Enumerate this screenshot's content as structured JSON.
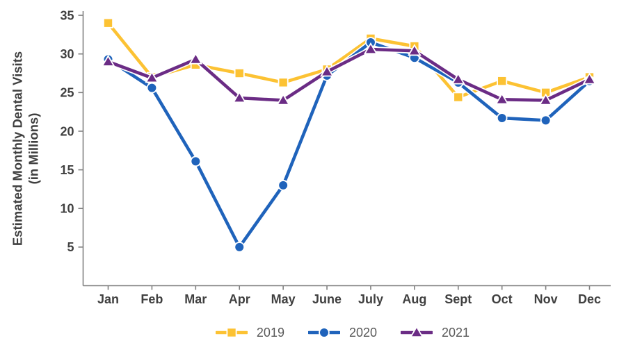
{
  "chart_data": {
    "type": "line",
    "title": "",
    "categories": [
      "Jan",
      "Feb",
      "Mar",
      "Apr",
      "May",
      "June",
      "July",
      "Aug",
      "Sept",
      "Oct",
      "Nov",
      "Dec"
    ],
    "series": [
      {
        "name": "2019",
        "marker": "square",
        "color": "#FCC233",
        "values": [
          34.0,
          27.0,
          28.6,
          27.5,
          26.3,
          28.0,
          32.0,
          31.0,
          24.4,
          26.5,
          25.0,
          27.0
        ]
      },
      {
        "name": "2020",
        "marker": "circle",
        "color": "#1F63BB",
        "values": [
          29.3,
          25.6,
          16.1,
          5.0,
          13.0,
          27.2,
          31.5,
          29.5,
          26.3,
          21.7,
          21.4,
          26.5
        ]
      },
      {
        "name": "2021",
        "marker": "triangle",
        "color": "#6B2C85",
        "values": [
          29.0,
          26.9,
          29.3,
          24.3,
          24.0,
          27.7,
          30.6,
          30.4,
          26.7,
          24.1,
          24.0,
          26.7
        ]
      }
    ],
    "xlabel": "",
    "ylabel_line1": "Estimated Monthly Dental Visits",
    "ylabel_line2": "(in Millions)",
    "yticks": [
      5,
      10,
      15,
      20,
      25,
      30,
      35
    ],
    "ylim": [
      0,
      35
    ],
    "grid": false,
    "legend_position": "bottom",
    "text_color": "#404040",
    "axis_color": "#808080",
    "legend_text_color": "#595959"
  }
}
